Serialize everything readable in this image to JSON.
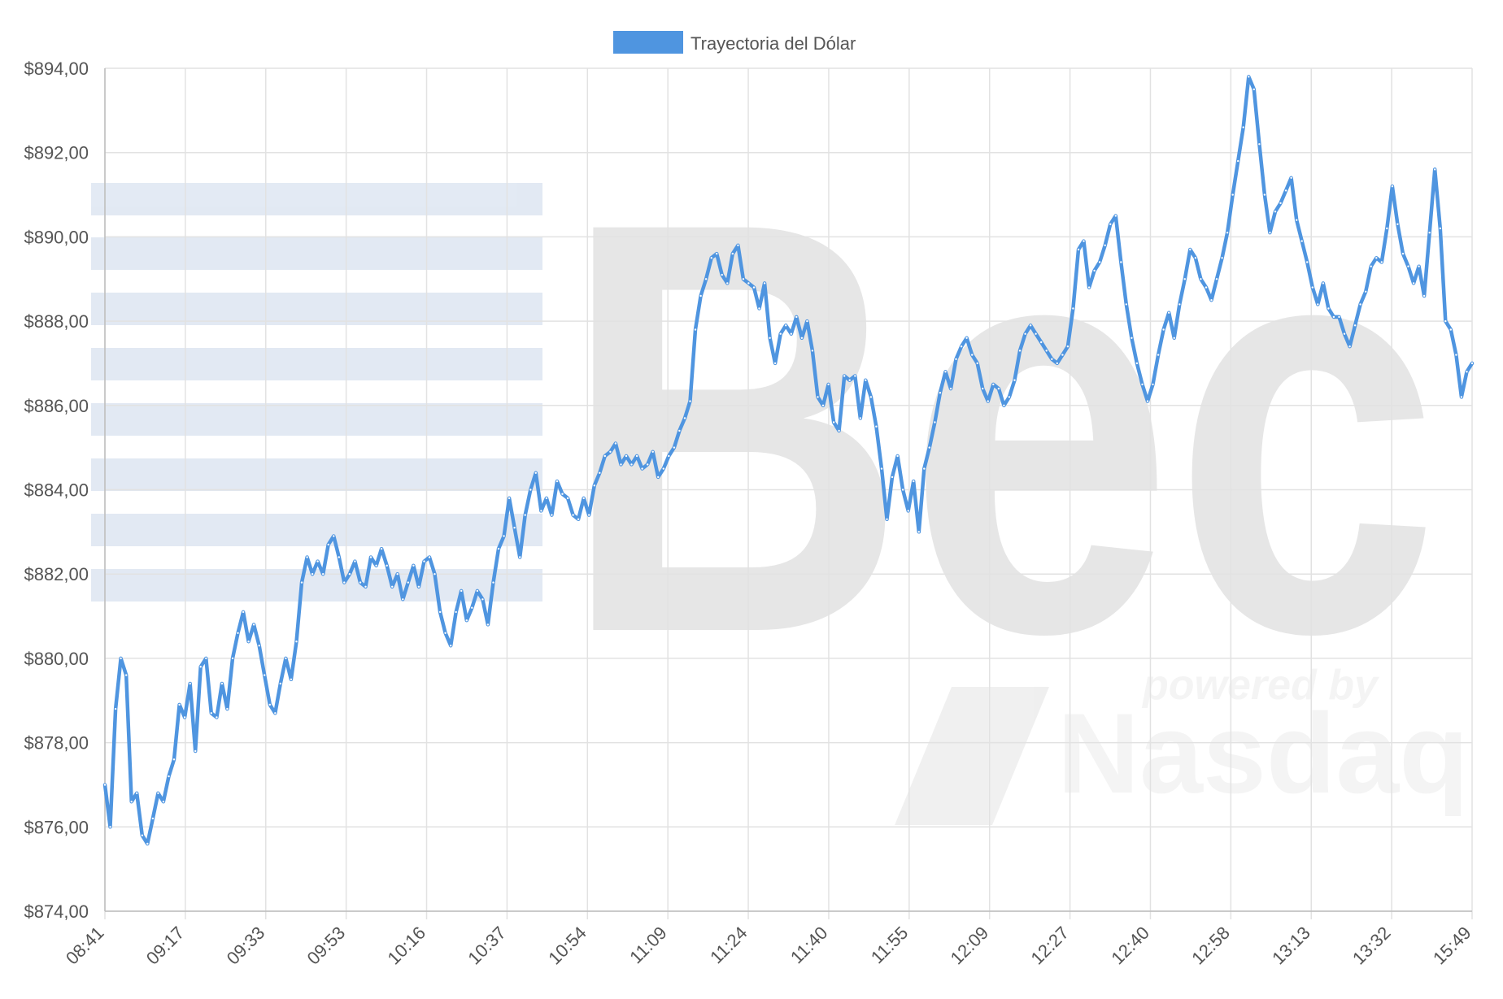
{
  "chart_data": {
    "type": "line",
    "series": [
      {
        "name": "Trayectoria del Dólar",
        "color": "#4f95e0",
        "y": [
          877.0,
          876.0,
          878.8,
          880.0,
          879.6,
          876.6,
          876.8,
          875.8,
          875.6,
          876.2,
          876.8,
          876.6,
          877.2,
          877.6,
          878.9,
          878.6,
          879.4,
          877.8,
          879.8,
          880.0,
          878.7,
          878.6,
          879.4,
          878.8,
          880.0,
          880.6,
          881.1,
          880.4,
          880.8,
          880.3,
          879.6,
          878.9,
          878.7,
          879.4,
          880.0,
          879.5,
          880.4,
          881.8,
          882.4,
          882.0,
          882.3,
          882.0,
          882.7,
          882.9,
          882.4,
          881.8,
          882.0,
          882.3,
          881.8,
          881.7,
          882.4,
          882.2,
          882.6,
          882.2,
          881.7,
          882.0,
          881.4,
          881.8,
          882.2,
          881.7,
          882.3,
          882.4,
          882.0,
          881.1,
          880.6,
          880.3,
          881.1,
          881.6,
          880.9,
          881.2,
          881.6,
          881.4,
          880.8,
          881.8,
          882.6,
          882.9,
          883.8,
          883.1,
          882.4,
          883.4,
          884.0,
          884.4,
          883.5,
          883.8,
          883.4,
          884.2,
          883.9,
          883.8,
          883.4,
          883.3,
          883.8,
          883.4,
          884.1,
          884.4,
          884.8,
          884.9,
          885.1,
          884.6,
          884.8,
          884.6,
          884.8,
          884.5,
          884.6,
          884.9,
          884.3,
          884.5,
          884.8,
          885.0,
          885.4,
          885.7,
          886.1,
          887.8,
          888.6,
          889.0,
          889.5,
          889.6,
          889.1,
          888.9,
          889.6,
          889.8,
          889.0,
          888.9,
          888.8,
          888.3,
          888.9,
          887.6,
          887.0,
          887.7,
          887.9,
          887.7,
          888.1,
          887.6,
          888.0,
          887.3,
          886.2,
          886.0,
          886.5,
          885.6,
          885.4,
          886.7,
          886.6,
          886.7,
          885.7,
          886.6,
          886.2,
          885.5,
          884.5,
          883.3,
          884.3,
          884.8,
          884.0,
          883.5,
          884.2,
          883.0,
          884.5,
          885.0,
          885.6,
          886.3,
          886.8,
          886.4,
          887.1,
          887.4,
          887.6,
          887.2,
          887.0,
          886.4,
          886.1,
          886.5,
          886.4,
          886.0,
          886.2,
          886.6,
          887.3,
          887.7,
          887.9,
          887.7,
          887.5,
          887.3,
          887.1,
          887.0,
          887.2,
          887.4,
          888.3,
          889.7,
          889.9,
          888.8,
          889.2,
          889.4,
          889.8,
          890.3,
          890.5,
          889.4,
          888.4,
          887.6,
          887.0,
          886.5,
          886.1,
          886.5,
          887.2,
          887.8,
          888.2,
          887.6,
          888.4,
          889.0,
          889.7,
          889.5,
          889.0,
          888.8,
          888.5,
          889.0,
          889.5,
          890.1,
          891.0,
          891.8,
          892.6,
          893.8,
          893.5,
          892.2,
          891.0,
          890.1,
          890.6,
          890.8,
          891.1,
          891.4,
          890.4,
          889.9,
          889.4,
          888.8,
          888.4,
          888.9,
          888.3,
          888.1,
          888.1,
          887.7,
          887.4,
          887.9,
          888.4,
          888.7,
          889.3,
          889.5,
          889.4,
          890.2,
          891.2,
          890.3,
          889.6,
          889.3,
          888.9,
          889.3,
          888.6,
          890.1,
          891.6,
          890.2,
          888.0,
          887.8,
          887.2,
          886.2,
          886.8,
          887.0
        ]
      }
    ],
    "x_tick_labels": [
      "08:41",
      "09:17",
      "09:33",
      "09:53",
      "10:16",
      "10:37",
      "10:54",
      "11:09",
      "11:24",
      "11:40",
      "11:55",
      "12:09",
      "12:27",
      "12:40",
      "12:58",
      "13:13",
      "13:32",
      "15:49"
    ],
    "y_tick_labels": [
      "$874,00",
      "$876,00",
      "$878,00",
      "$880,00",
      "$882,00",
      "$884,00",
      "$886,00",
      "$888,00",
      "$890,00",
      "$892,00",
      "$894,00"
    ],
    "ylim": [
      874,
      894
    ],
    "legend_position": "top-center",
    "grid": true,
    "watermark": {
      "brand": "Bec",
      "powered": "powered by",
      "nasdaq": "Nasdaq"
    }
  }
}
